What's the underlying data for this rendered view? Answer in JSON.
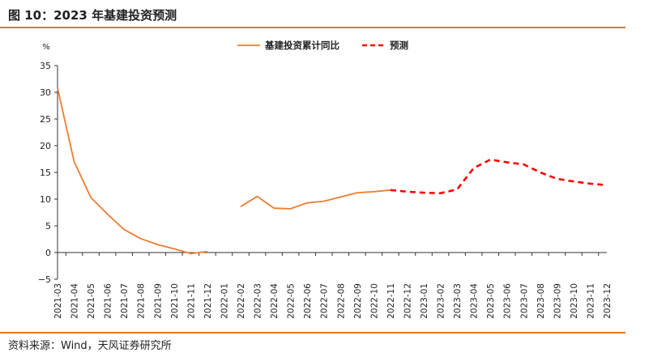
{
  "figure": {
    "title": "图 10：2023 年基建投资预测",
    "source": "资料来源：Wind，天风证券研究所",
    "accent_color": "#e07b2a"
  },
  "chart_data": {
    "type": "line",
    "ylabel": "%",
    "xlabel": "",
    "ylim": [
      -5,
      35
    ],
    "yticks": [
      -5,
      0,
      5,
      10,
      15,
      20,
      25,
      30,
      35
    ],
    "grid": false,
    "legend_position": "top-center",
    "categories": [
      "2021-03",
      "2021-04",
      "2021-05",
      "2021-06",
      "2021-07",
      "2021-08",
      "2021-09",
      "2021-10",
      "2021-11",
      "2021-12",
      "2022-01",
      "2022-02",
      "2022-03",
      "2022-04",
      "2022-05",
      "2022-06",
      "2022-07",
      "2022-08",
      "2022-09",
      "2022-10",
      "2022-11",
      "2022-12",
      "2023-01",
      "2023-02",
      "2023-03",
      "2023-04",
      "2023-05",
      "2023-06",
      "2023-07",
      "2023-08",
      "2023-09",
      "2023-10",
      "2023-11",
      "2023-12"
    ],
    "series": [
      {
        "name": "基建投资累计同比",
        "color": "#ed7d31",
        "style": "solid",
        "values": [
          30.8,
          17.0,
          10.3,
          7.2,
          4.3,
          2.6,
          1.5,
          0.7,
          -0.2,
          0.2,
          null,
          8.6,
          10.5,
          8.3,
          8.2,
          9.3,
          9.6,
          10.4,
          11.2,
          11.4,
          11.7,
          null,
          null,
          null,
          null,
          null,
          null,
          null,
          null,
          null,
          null,
          null,
          null,
          null
        ]
      },
      {
        "name": "预测",
        "color": "#ff0000",
        "style": "dashed",
        "values": [
          null,
          null,
          null,
          null,
          null,
          null,
          null,
          null,
          null,
          null,
          null,
          null,
          null,
          null,
          null,
          null,
          null,
          null,
          null,
          null,
          11.7,
          11.4,
          11.2,
          11.1,
          11.8,
          15.8,
          17.4,
          16.9,
          16.5,
          15.0,
          13.8,
          13.3,
          12.9,
          12.6
        ]
      }
    ]
  }
}
